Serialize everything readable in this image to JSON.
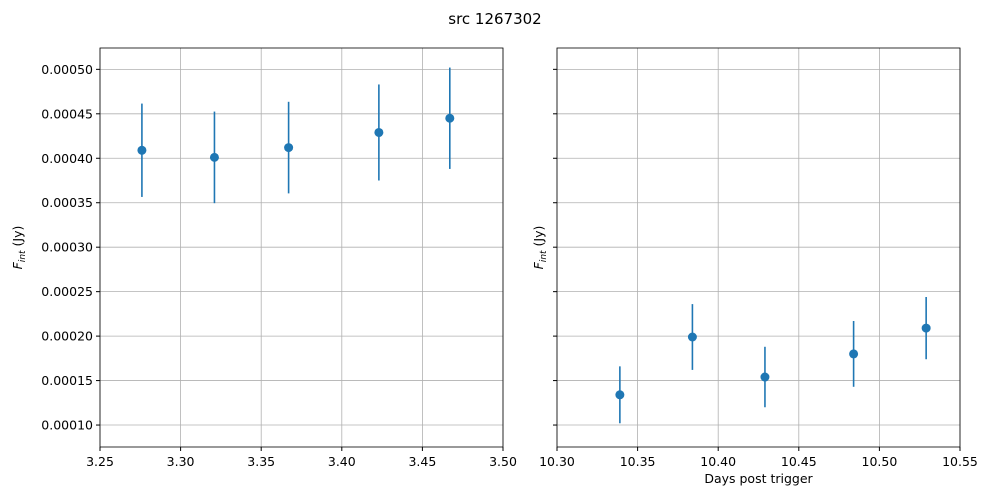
{
  "title": "src 1267302",
  "chart_data": [
    {
      "type": "scatter",
      "ylabel_symbol": "F",
      "ylabel_subscript": "int",
      "ylabel_unit": "(Jy)",
      "grid": true,
      "xlim": [
        3.25,
        3.5
      ],
      "ylim": [
        7.53e-05,
        0.000524
      ],
      "xticks": [
        3.25,
        {
          "value": 3.3,
          "label": "3.30"
        },
        3.35,
        {
          "value": 3.4,
          "label": "3.40"
        },
        3.45,
        {
          "value": 3.5,
          "label": "3.50"
        }
      ],
      "yticks": [
        {
          "value": 0.0001,
          "label": "0.00010"
        },
        0.00015,
        {
          "value": 0.0002,
          "label": "0.00020"
        },
        0.00025,
        {
          "value": 0.0003,
          "label": "0.00030"
        },
        0.00035,
        {
          "value": 0.0004,
          "label": "0.00040"
        },
        0.00045,
        {
          "value": 0.0005,
          "label": "0.00050"
        }
      ],
      "show_ytick_labels": true,
      "series": [
        {
          "color": "#1f77b4",
          "x": [
            3.276,
            3.321,
            3.367,
            3.423,
            3.467
          ],
          "values": [
            0.000409,
            0.000401,
            0.000412,
            0.000429,
            0.000445
          ],
          "errors": [
            5.25e-05,
            5.15e-05,
            5.15e-05,
            5.4e-05,
            5.7e-05
          ]
        }
      ]
    },
    {
      "type": "scatter",
      "ylabel_symbol": "F",
      "ylabel_subscript": "int",
      "ylabel_unit": "(Jy)",
      "xlabel": "Days post trigger",
      "grid": true,
      "xlim": [
        10.3,
        10.55
      ],
      "ylim": [
        7.53e-05,
        0.000524
      ],
      "xticks": [
        {
          "value": 10.3,
          "label": "10.30"
        },
        10.35,
        {
          "value": 10.4,
          "label": "10.40"
        },
        10.45,
        {
          "value": 10.5,
          "label": "10.50"
        },
        10.55
      ],
      "yticks": [
        0.0001,
        0.00015,
        0.0002,
        0.00025,
        0.0003,
        0.00035,
        0.0004,
        0.00045,
        0.0005
      ],
      "show_ytick_labels": false,
      "series": [
        {
          "color": "#1f77b4",
          "x": [
            10.339,
            10.384,
            10.429,
            10.484,
            10.529
          ],
          "values": [
            0.000134,
            0.000199,
            0.000154,
            0.00018,
            0.000209
          ],
          "errors": [
            3.2e-05,
            3.7e-05,
            3.4e-05,
            3.7e-05,
            3.5e-05
          ]
        }
      ]
    }
  ]
}
